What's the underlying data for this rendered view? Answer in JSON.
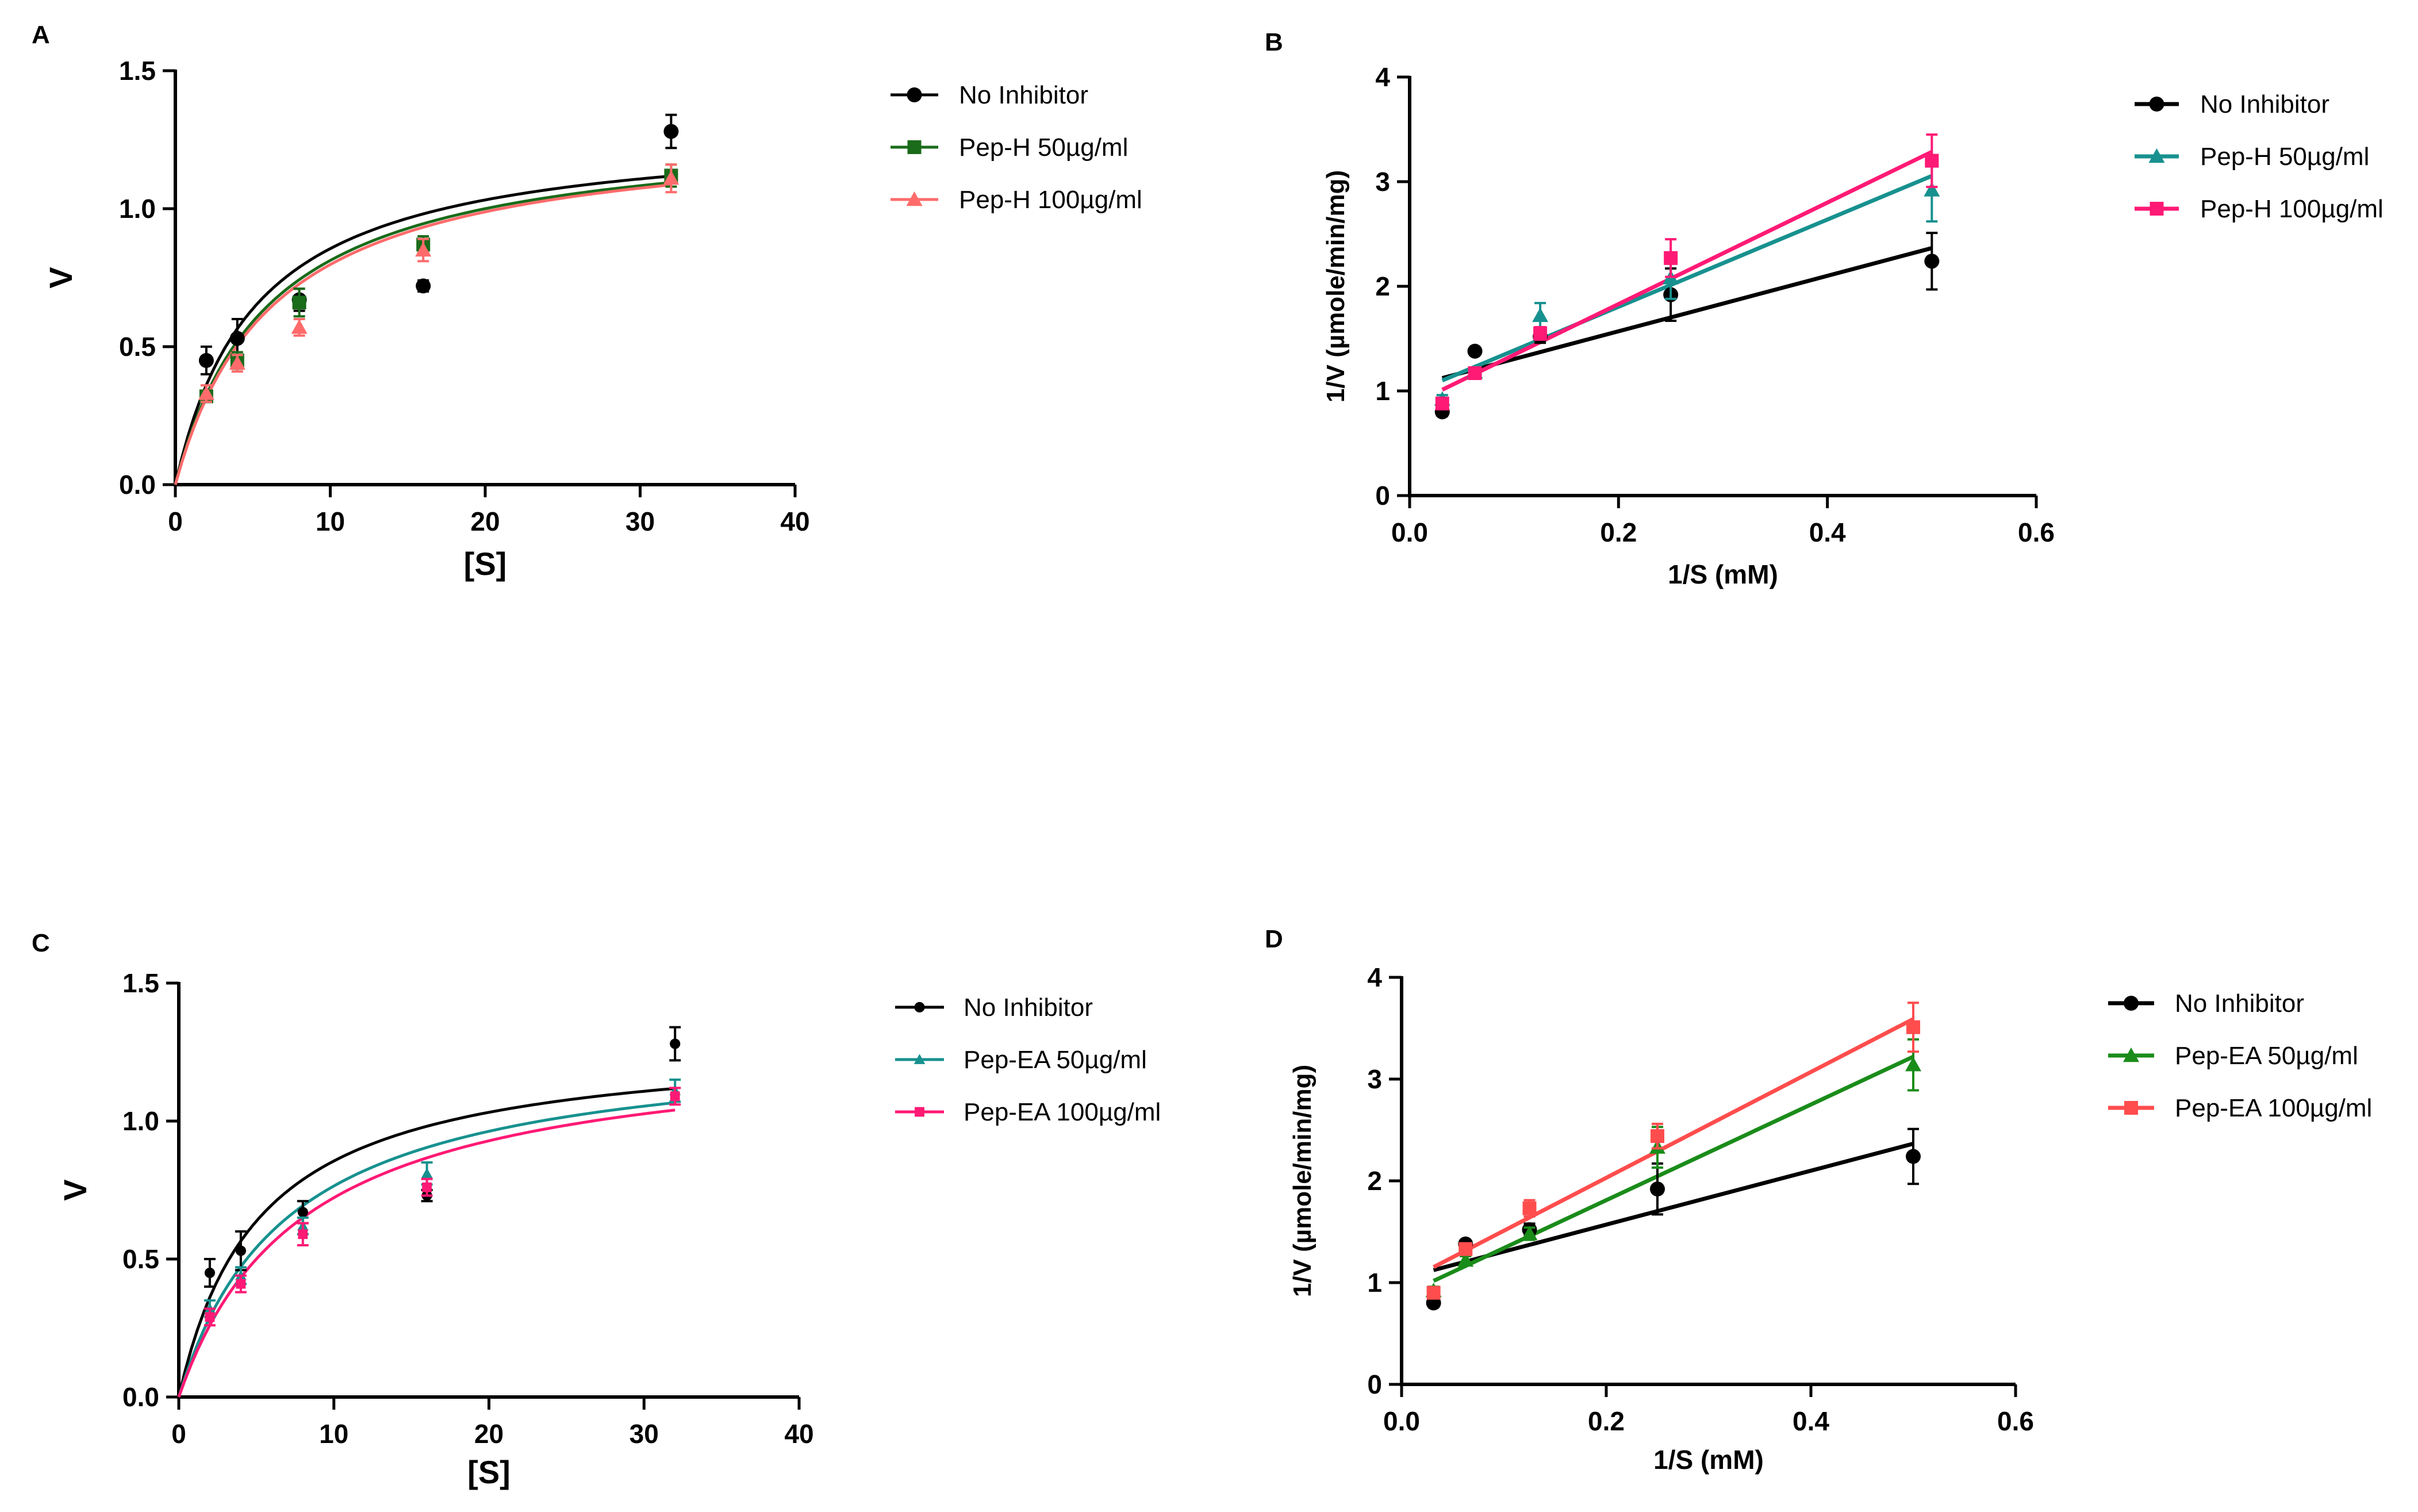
{
  "chart_data": [
    {
      "panel": "A",
      "type": "scatter",
      "title": "",
      "xlabel": "[S]",
      "ylabel": "V",
      "xlim": [
        0,
        40
      ],
      "ylim": [
        0,
        1.5
      ],
      "xticks": [
        0,
        10,
        20,
        30,
        40
      ],
      "xtick_labels": [
        "0",
        "10",
        "20",
        "30",
        "40"
      ],
      "yticks": [
        0,
        0.5,
        1.0,
        1.5
      ],
      "ytick_labels": [
        "0.0",
        "0.5",
        "1.0",
        "1.5"
      ],
      "fit": "michaelis-menten",
      "legend_position": "right",
      "x": [
        2,
        4,
        8,
        16,
        32
      ],
      "series": [
        {
          "name": "No Inhibitor",
          "color": "#000000",
          "marker": "circle",
          "values": [
            0.45,
            0.53,
            0.67,
            0.72,
            1.28
          ],
          "errors": [
            0.05,
            0.07,
            0.04,
            0.02,
            0.06
          ],
          "fit_params": {
            "vmax": 1.3,
            "km": 5.2
          }
        },
        {
          "name": "Pep-H 50µg/ml",
          "color": "#1a6b1a",
          "marker": "square",
          "values": [
            0.32,
            0.45,
            0.66,
            0.87,
            1.12
          ],
          "errors": [
            0.02,
            0.03,
            0.05,
            0.03,
            0.04
          ],
          "fit_params": {
            "vmax": 1.3,
            "km": 6.0
          }
        },
        {
          "name": "Pep-H 100µg/ml",
          "color": "#ff6b6b",
          "marker": "triangle",
          "values": [
            0.33,
            0.44,
            0.57,
            0.85,
            1.11
          ],
          "errors": [
            0.03,
            0.03,
            0.03,
            0.04,
            0.05
          ],
          "fit_params": {
            "vmax": 1.3,
            "km": 6.3
          }
        }
      ]
    },
    {
      "panel": "B",
      "type": "scatter",
      "title": "",
      "xlabel": "1/S (mM)",
      "ylabel": "1/V (µmole/min/mg)",
      "xlim": [
        0,
        0.6
      ],
      "ylim": [
        0,
        4
      ],
      "xticks": [
        0,
        0.2,
        0.4,
        0.6
      ],
      "xtick_labels": [
        "0.0",
        "0.2",
        "0.4",
        "0.6"
      ],
      "yticks": [
        0,
        1,
        2,
        3,
        4
      ],
      "ytick_labels": [
        "0",
        "1",
        "2",
        "3",
        "4"
      ],
      "fit": "linear",
      "legend_position": "right",
      "x": [
        0.03125,
        0.0625,
        0.125,
        0.25,
        0.5
      ],
      "series": [
        {
          "name": "No Inhibitor",
          "color": "#000000",
          "marker": "circle",
          "values": [
            0.8,
            1.38,
            1.52,
            1.92,
            2.24
          ],
          "errors": [
            0.04,
            0.03,
            0.06,
            0.25,
            0.27
          ],
          "fit_params": {
            "slope": 2.65,
            "intercept": 1.04
          }
        },
        {
          "name": "Pep-H 50µg/ml",
          "color": "#17918f",
          "marker": "triangle",
          "values": [
            0.92,
            1.18,
            1.72,
            2.08,
            2.92
          ],
          "errors": [
            0.04,
            0.04,
            0.12,
            0.2,
            0.3
          ],
          "fit_params": {
            "slope": 4.17,
            "intercept": 0.97
          }
        },
        {
          "name": "Pep-H 100µg/ml",
          "color": "#ff1a75",
          "marker": "square",
          "values": [
            0.88,
            1.17,
            1.55,
            2.27,
            3.2
          ],
          "errors": [
            0.04,
            0.04,
            0.06,
            0.18,
            0.25
          ],
          "fit_params": {
            "slope": 4.85,
            "intercept": 0.86
          }
        }
      ]
    },
    {
      "panel": "C",
      "type": "scatter",
      "title": "",
      "xlabel": "[S]",
      "ylabel": "V",
      "xlim": [
        0,
        40
      ],
      "ylim": [
        0,
        1.5
      ],
      "xticks": [
        0,
        10,
        20,
        30,
        40
      ],
      "xtick_labels": [
        "0",
        "10",
        "20",
        "30",
        "40"
      ],
      "yticks": [
        0,
        0.5,
        1.0,
        1.5
      ],
      "ytick_labels": [
        "0.0",
        "0.5",
        "1.0",
        "1.5"
      ],
      "fit": "michaelis-menten",
      "legend_position": "right",
      "x": [
        2,
        4,
        8,
        16,
        32
      ],
      "series": [
        {
          "name": "No Inhibitor",
          "color": "#000000",
          "marker": "circle-small",
          "values": [
            0.45,
            0.53,
            0.67,
            0.73,
            1.28
          ],
          "errors": [
            0.05,
            0.07,
            0.04,
            0.02,
            0.06
          ],
          "fit_params": {
            "vmax": 1.3,
            "km": 5.2
          }
        },
        {
          "name": "Pep-EA 50µg/ml",
          "color": "#17918f",
          "marker": "triangle-small",
          "values": [
            0.32,
            0.44,
            0.62,
            0.81,
            1.11
          ],
          "errors": [
            0.03,
            0.03,
            0.03,
            0.04,
            0.04
          ],
          "fit_params": {
            "vmax": 1.3,
            "km": 7.0
          }
        },
        {
          "name": "Pep-EA 100µg/ml",
          "color": "#ff1a75",
          "marker": "square-small",
          "values": [
            0.29,
            0.41,
            0.59,
            0.76,
            1.09
          ],
          "errors": [
            0.03,
            0.03,
            0.04,
            0.03,
            0.03
          ],
          "fit_params": {
            "vmax": 1.3,
            "km": 8.0
          }
        }
      ]
    },
    {
      "panel": "D",
      "type": "scatter",
      "title": "",
      "xlabel": "1/S (mM)",
      "ylabel": "1/V (µmole/min/mg)",
      "xlim": [
        0,
        0.6
      ],
      "ylim": [
        0,
        4
      ],
      "xticks": [
        0,
        0.2,
        0.4,
        0.6
      ],
      "xtick_labels": [
        "0.0",
        "0.2",
        "0.4",
        "0.6"
      ],
      "yticks": [
        0,
        1,
        2,
        3,
        4
      ],
      "ytick_labels": [
        "0",
        "1",
        "2",
        "3",
        "4"
      ],
      "fit": "linear",
      "legend_position": "right",
      "x": [
        0.03125,
        0.0625,
        0.125,
        0.25,
        0.5
      ],
      "series": [
        {
          "name": "No Inhibitor",
          "color": "#000000",
          "marker": "circle",
          "values": [
            0.8,
            1.38,
            1.52,
            1.92,
            2.24
          ],
          "errors": [
            0.04,
            0.03,
            0.06,
            0.25,
            0.27
          ],
          "fit_params": {
            "slope": 2.65,
            "intercept": 1.04
          }
        },
        {
          "name": "Pep-EA 50µg/ml",
          "color": "#1a8c1a",
          "marker": "triangle",
          "values": [
            0.92,
            1.22,
            1.48,
            2.33,
            3.14
          ],
          "errors": [
            0.04,
            0.04,
            0.06,
            0.2,
            0.25
          ],
          "fit_params": {
            "slope": 4.7,
            "intercept": 0.87
          }
        },
        {
          "name": "Pep-EA 100µg/ml",
          "color": "#ff4d4d",
          "marker": "square",
          "values": [
            0.9,
            1.33,
            1.73,
            2.44,
            3.51
          ],
          "errors": [
            0.04,
            0.04,
            0.08,
            0.12,
            0.24
          ],
          "fit_params": {
            "slope": 5.2,
            "intercept": 0.99
          }
        }
      ]
    }
  ]
}
